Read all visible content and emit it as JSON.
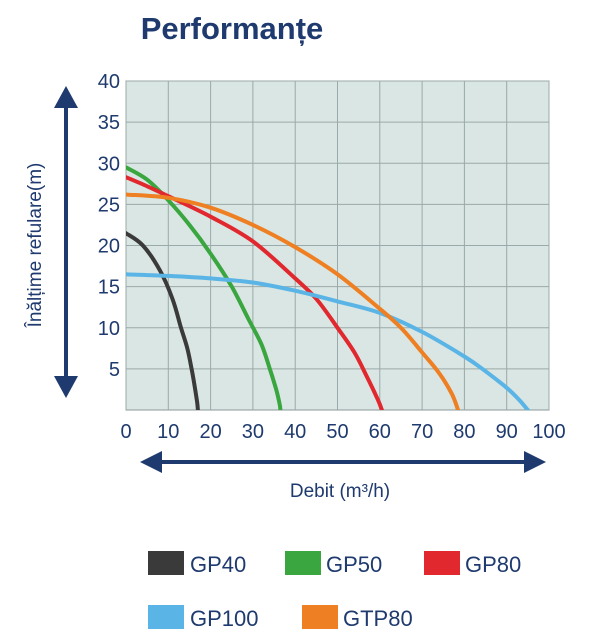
{
  "chart_data": {
    "type": "line",
    "title": "Performanțe",
    "xlabel": "Debit (m³/h)",
    "ylabel": "Înălțime refulare(m)",
    "xlim": [
      0,
      100
    ],
    "ylim": [
      0,
      40
    ],
    "x_ticks": [
      "0",
      "10",
      "20",
      "30",
      "40",
      "50",
      "60",
      "70",
      "80",
      "90",
      "100"
    ],
    "y_ticks": [
      "5",
      "10",
      "15",
      "20",
      "25",
      "30",
      "35",
      "40"
    ],
    "grid": true,
    "legend_position": "bottom",
    "plot_background": "#d9e6e3",
    "series": [
      {
        "name": "GP40",
        "color": "#3a3a3a",
        "x": [
          0,
          4,
          8,
          11,
          13,
          14.5,
          15.5,
          16.2,
          16.8,
          17
        ],
        "y": [
          21.5,
          20,
          17,
          13.5,
          10,
          7.5,
          5,
          3,
          1,
          0
        ]
      },
      {
        "name": "GP50",
        "color": "#3aa63f",
        "x": [
          0,
          5,
          10,
          15,
          20,
          25,
          29,
          32,
          34,
          35.5,
          36.3,
          36.5
        ],
        "y": [
          29.5,
          28,
          25.5,
          22.5,
          19,
          15,
          11,
          8,
          5,
          2.5,
          0.8,
          0
        ]
      },
      {
        "name": "GP80",
        "color": "#e0282e",
        "x": [
          0,
          5,
          10,
          20,
          30,
          40,
          45,
          50,
          54,
          57,
          59.5,
          60.5
        ],
        "y": [
          28.3,
          27.2,
          26,
          23.5,
          20.5,
          16,
          13.5,
          10,
          7,
          4,
          1.3,
          0
        ]
      },
      {
        "name": "GP100",
        "color": "#5ab4e6",
        "x": [
          0,
          10,
          20,
          30,
          40,
          50,
          60,
          70,
          80,
          85,
          90,
          93,
          95
        ],
        "y": [
          16.5,
          16.3,
          16,
          15.5,
          14.5,
          13.2,
          11.8,
          9.5,
          6.5,
          4.7,
          2.7,
          1.2,
          0
        ]
      },
      {
        "name": "GTP80",
        "color": "#ee7f22",
        "x": [
          0,
          10,
          20,
          30,
          40,
          50,
          60,
          65,
          70,
          74,
          77,
          78.5
        ],
        "y": [
          26.2,
          25.8,
          24.6,
          22.5,
          19.8,
          16.5,
          12.3,
          10,
          7,
          4.5,
          2,
          0
        ]
      }
    ]
  },
  "legend": [
    {
      "label": "GP40",
      "color": "#3a3a3a"
    },
    {
      "label": "GP50",
      "color": "#3aa63f"
    },
    {
      "label": "GP80",
      "color": "#e0282e"
    },
    {
      "label": "GP100",
      "color": "#5ab4e6"
    },
    {
      "label": "GTP80",
      "color": "#ee7f22"
    }
  ]
}
